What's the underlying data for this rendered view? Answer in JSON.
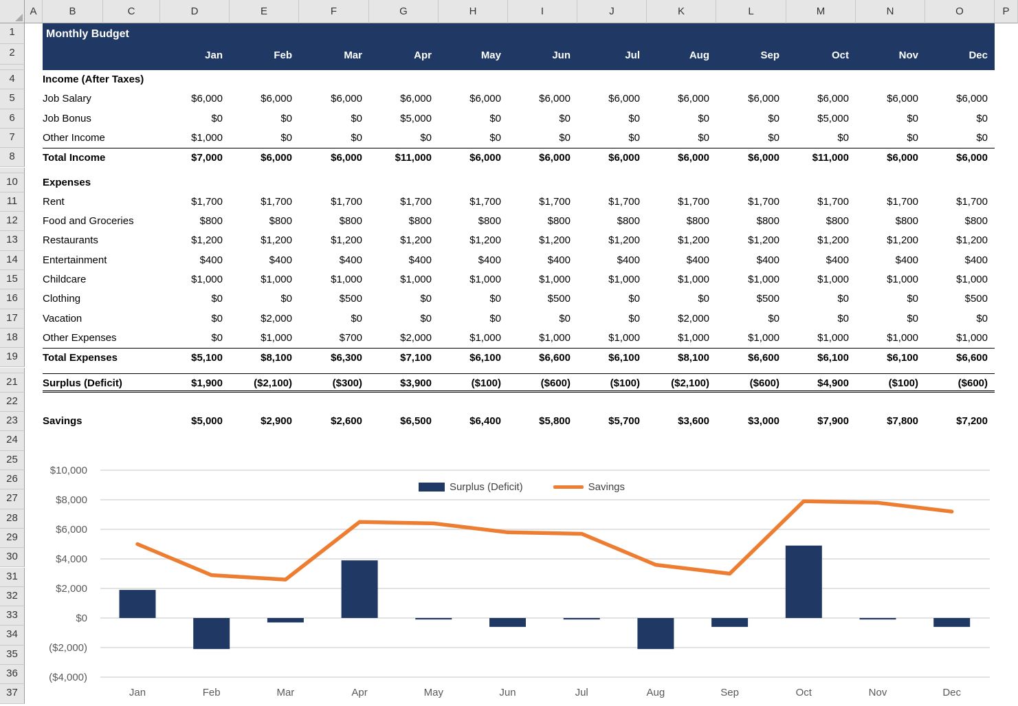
{
  "colors": {
    "header_navy": "#1F3864",
    "bar_navy": "#1F3864",
    "line_orange": "#ED7D31",
    "chrome_bg": "#E6E6E6",
    "chart_gridline": "#D9D9D9",
    "axis_text": "#595959"
  },
  "grid": {
    "columns": [
      "A",
      "B",
      "C",
      "D",
      "E",
      "F",
      "G",
      "H",
      "I",
      "J",
      "K",
      "L",
      "M",
      "N",
      "O",
      "P"
    ],
    "rows": [
      "1",
      "2",
      "3",
      "4",
      "5",
      "6",
      "7",
      "8",
      "9",
      "10",
      "11",
      "12",
      "13",
      "14",
      "15",
      "16",
      "17",
      "18",
      "19",
      "20",
      "21",
      "22",
      "23",
      "24",
      "25",
      "26",
      "27",
      "28",
      "29",
      "30",
      "31",
      "32",
      "33",
      "34",
      "35",
      "36",
      "37"
    ]
  },
  "table": {
    "title": "Monthly Budget",
    "months": [
      "Jan",
      "Feb",
      "Mar",
      "Apr",
      "May",
      "Jun",
      "Jul",
      "Aug",
      "Sep",
      "Oct",
      "Nov",
      "Dec"
    ],
    "rows": [
      {
        "id": "income-header",
        "row": 4,
        "style": "section",
        "label": "Income (After Taxes)",
        "values": []
      },
      {
        "id": "job-salary",
        "row": 5,
        "style": "item",
        "label": "Job Salary",
        "values": [
          "$6,000",
          "$6,000",
          "$6,000",
          "$6,000",
          "$6,000",
          "$6,000",
          "$6,000",
          "$6,000",
          "$6,000",
          "$6,000",
          "$6,000",
          "$6,000"
        ]
      },
      {
        "id": "job-bonus",
        "row": 6,
        "style": "item",
        "label": "Job Bonus",
        "values": [
          "$0",
          "$0",
          "$0",
          "$5,000",
          "$0",
          "$0",
          "$0",
          "$0",
          "$0",
          "$5,000",
          "$0",
          "$0"
        ]
      },
      {
        "id": "other-income",
        "row": 7,
        "style": "item",
        "label": "Other Income",
        "values": [
          "$1,000",
          "$0",
          "$0",
          "$0",
          "$0",
          "$0",
          "$0",
          "$0",
          "$0",
          "$0",
          "$0",
          "$0"
        ]
      },
      {
        "id": "total-income",
        "row": 8,
        "style": "total",
        "label": "Total Income",
        "values": [
          "$7,000",
          "$6,000",
          "$6,000",
          "$11,000",
          "$6,000",
          "$6,000",
          "$6,000",
          "$6,000",
          "$6,000",
          "$11,000",
          "$6,000",
          "$6,000"
        ]
      },
      {
        "id": "expenses-header",
        "row": 10,
        "style": "section",
        "label": "Expenses",
        "values": []
      },
      {
        "id": "rent",
        "row": 11,
        "style": "item",
        "label": "Rent",
        "values": [
          "$1,700",
          "$1,700",
          "$1,700",
          "$1,700",
          "$1,700",
          "$1,700",
          "$1,700",
          "$1,700",
          "$1,700",
          "$1,700",
          "$1,700",
          "$1,700"
        ]
      },
      {
        "id": "food-and-groceries",
        "row": 12,
        "style": "item",
        "label": "Food and Groceries",
        "values": [
          "$800",
          "$800",
          "$800",
          "$800",
          "$800",
          "$800",
          "$800",
          "$800",
          "$800",
          "$800",
          "$800",
          "$800"
        ]
      },
      {
        "id": "restaurants",
        "row": 13,
        "style": "item",
        "label": "Restaurants",
        "values": [
          "$1,200",
          "$1,200",
          "$1,200",
          "$1,200",
          "$1,200",
          "$1,200",
          "$1,200",
          "$1,200",
          "$1,200",
          "$1,200",
          "$1,200",
          "$1,200"
        ]
      },
      {
        "id": "entertainment",
        "row": 14,
        "style": "item",
        "label": "Entertainment",
        "values": [
          "$400",
          "$400",
          "$400",
          "$400",
          "$400",
          "$400",
          "$400",
          "$400",
          "$400",
          "$400",
          "$400",
          "$400"
        ]
      },
      {
        "id": "childcare",
        "row": 15,
        "style": "item",
        "label": "Childcare",
        "values": [
          "$1,000",
          "$1,000",
          "$1,000",
          "$1,000",
          "$1,000",
          "$1,000",
          "$1,000",
          "$1,000",
          "$1,000",
          "$1,000",
          "$1,000",
          "$1,000"
        ]
      },
      {
        "id": "clothing",
        "row": 16,
        "style": "item",
        "label": "Clothing",
        "values": [
          "$0",
          "$0",
          "$500",
          "$0",
          "$0",
          "$500",
          "$0",
          "$0",
          "$500",
          "$0",
          "$0",
          "$500"
        ]
      },
      {
        "id": "vacation",
        "row": 17,
        "style": "item",
        "label": "Vacation",
        "values": [
          "$0",
          "$2,000",
          "$0",
          "$0",
          "$0",
          "$0",
          "$0",
          "$2,000",
          "$0",
          "$0",
          "$0",
          "$0"
        ]
      },
      {
        "id": "other-expenses",
        "row": 18,
        "style": "item",
        "label": "Other Expenses",
        "values": [
          "$0",
          "$1,000",
          "$700",
          "$2,000",
          "$1,000",
          "$1,000",
          "$1,000",
          "$1,000",
          "$1,000",
          "$1,000",
          "$1,000",
          "$1,000"
        ]
      },
      {
        "id": "total-expenses",
        "row": 19,
        "style": "total",
        "label": "Total Expenses",
        "values": [
          "$5,100",
          "$8,100",
          "$6,300",
          "$7,100",
          "$6,100",
          "$6,600",
          "$6,100",
          "$8,100",
          "$6,600",
          "$6,100",
          "$6,100",
          "$6,600"
        ]
      },
      {
        "id": "surplus-deficit",
        "row": 21,
        "style": "surplus",
        "label": "Surplus (Deficit)",
        "values": [
          "$1,900",
          "($2,100)",
          "($300)",
          "$3,900",
          "($100)",
          "($600)",
          "($100)",
          "($2,100)",
          "($600)",
          "$4,900",
          "($100)",
          "($600)"
        ]
      },
      {
        "id": "savings",
        "row": 23,
        "style": "savings",
        "label": "Savings",
        "values": [
          "$5,000",
          "$2,900",
          "$2,600",
          "$6,500",
          "$6,400",
          "$5,800",
          "$5,700",
          "$3,600",
          "$3,000",
          "$7,900",
          "$7,800",
          "$7,200"
        ]
      }
    ]
  },
  "chart_data": {
    "type": "bar+line combo",
    "categories": [
      "Jan",
      "Feb",
      "Mar",
      "Apr",
      "May",
      "Jun",
      "Jul",
      "Aug",
      "Sep",
      "Oct",
      "Nov",
      "Dec"
    ],
    "series": [
      {
        "name": "Surplus (Deficit)",
        "type": "bar",
        "color": "#1F3864",
        "values": [
          1900,
          -2100,
          -300,
          3900,
          -100,
          -600,
          -100,
          -2100,
          -600,
          4900,
          -100,
          -600
        ]
      },
      {
        "name": "Savings",
        "type": "line",
        "color": "#ED7D31",
        "values": [
          5000,
          2900,
          2600,
          6500,
          6400,
          5800,
          5700,
          3600,
          3000,
          7900,
          7800,
          7200
        ]
      }
    ],
    "ylim": [
      -4000,
      10000
    ],
    "y_tick_step": 2000,
    "y_tick_labels": [
      "$10,000",
      "$8,000",
      "$6,000",
      "$4,000",
      "$2,000",
      "$0",
      "($2,000)",
      "($4,000)"
    ],
    "grid": "horizontal",
    "legend_position": "top-center"
  }
}
